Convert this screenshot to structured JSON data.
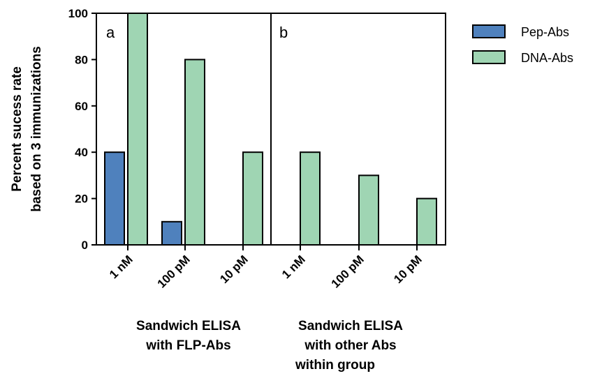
{
  "chart_data": {
    "type": "bar",
    "ylabel": [
      "Percent sucess rate",
      "based on 3 immunizations"
    ],
    "ylim": [
      0,
      100
    ],
    "yticks": [
      0,
      20,
      40,
      60,
      80,
      100
    ],
    "categories": [
      "1 nM",
      "100 pM",
      "10 pM",
      "1 nM",
      "100 pM",
      "10 pM"
    ],
    "series": [
      {
        "name": "Pep-Abs",
        "color": "#4f81bd",
        "values": [
          40,
          10,
          0,
          0,
          0,
          0
        ]
      },
      {
        "name": "DNA-Abs",
        "color": "#9fd5b3",
        "values": [
          100,
          80,
          40,
          40,
          30,
          20
        ]
      }
    ],
    "panels": [
      {
        "label": "a",
        "group_label": [
          "Sandwich ELISA",
          "with FLP-Abs"
        ]
      },
      {
        "label": "b",
        "group_label": [
          "Sandwich ELISA",
          "with other Abs",
          "within group"
        ]
      }
    ],
    "legend_position": "top-right",
    "grid": false
  }
}
